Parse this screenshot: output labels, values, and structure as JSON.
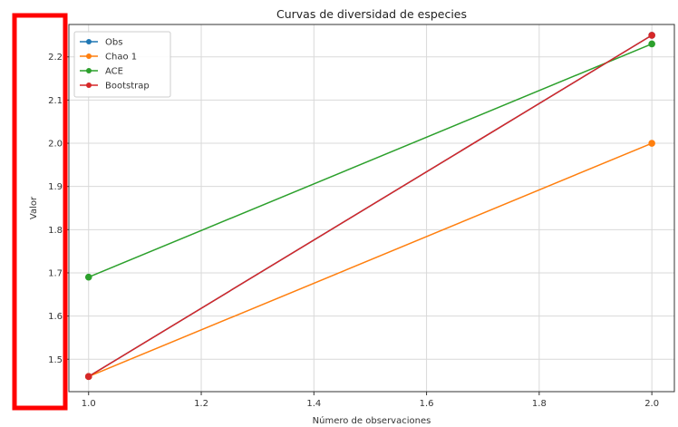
{
  "chart_data": {
    "type": "line",
    "title": "Curvas de diversidad de especies",
    "xlabel": "Número de observaciones",
    "ylabel": "Valor",
    "xlim": [
      0.965,
      2.04
    ],
    "ylim": [
      1.425,
      2.275
    ],
    "xticks": [
      "1.0",
      "1.2",
      "1.4",
      "1.6",
      "1.8",
      "2.0"
    ],
    "yticks": [
      "1.5",
      "1.6",
      "1.7",
      "1.8",
      "1.9",
      "2.0",
      "2.1",
      "2.2"
    ],
    "grid": true,
    "legend_position": "top-left",
    "x": [
      1.0,
      2.0
    ],
    "series": [
      {
        "name": "Obs",
        "values": [
          1.46,
          2.25
        ],
        "color": "#1f77b4"
      },
      {
        "name": "Chao 1",
        "values": [
          1.46,
          2.0
        ],
        "color": "#ff7f0e"
      },
      {
        "name": "ACE",
        "values": [
          1.69,
          2.23
        ],
        "color": "#2ca02c"
      },
      {
        "name": "Bootstrap",
        "values": [
          1.46,
          2.25
        ],
        "color": "#d62728"
      }
    ]
  },
  "annotation": {
    "highlight_color": "#ff0000"
  }
}
